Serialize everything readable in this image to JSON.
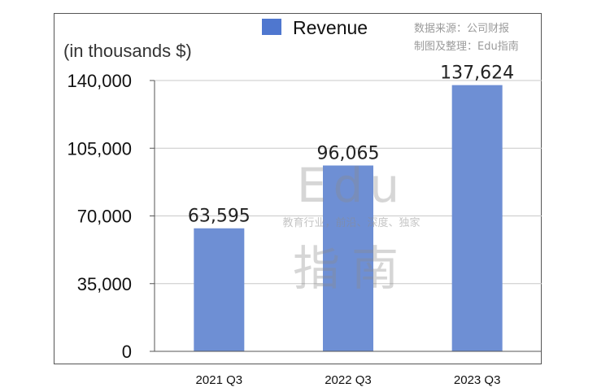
{
  "chart_data": {
    "type": "bar",
    "categories": [
      "2021 Q3",
      "2022 Q3",
      "2023 Q3"
    ],
    "series": [
      {
        "name": "Revenue",
        "values": [
          63595,
          96065,
          137624
        ]
      }
    ],
    "data_labels": [
      "63,595",
      "96,065",
      "137,624"
    ],
    "title": "",
    "xlabel": "",
    "ylabel": "(in thousands $)",
    "ylim": [
      0,
      140000
    ],
    "yticks": [
      0,
      35000,
      70000,
      105000,
      140000
    ],
    "ytick_labels": [
      "0",
      "35,000",
      "70,000",
      "105,000",
      "140,000"
    ],
    "grid": true,
    "legend": "top-center",
    "bar_color": "#6e8fd4",
    "legend_color": "#4f77cf"
  },
  "source_note": {
    "line1": "数据来源：公司财报",
    "line2": "制图及整理：Edu指南"
  },
  "watermark": {
    "line1": "Edu",
    "line2": "教育行业，前沿、深度、独家",
    "line3": "指南"
  }
}
